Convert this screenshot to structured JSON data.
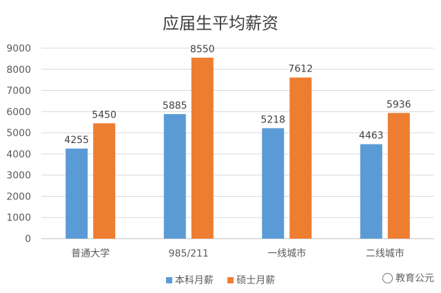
{
  "chart_data": {
    "type": "bar",
    "title": "应届生平均薪资",
    "categories": [
      "普通大学",
      "985/211",
      "一线城市",
      "二线城市"
    ],
    "series": [
      {
        "name": "本科月薪",
        "values": [
          4255,
          5885,
          5218,
          4463
        ],
        "color": "#5B9BD5"
      },
      {
        "name": "硕士月薪",
        "values": [
          5450,
          8550,
          7612,
          5936
        ],
        "color": "#ED7D31"
      }
    ],
    "ylim": [
      0,
      9000
    ],
    "yticks": [
      0,
      1000,
      2000,
      3000,
      4000,
      5000,
      6000,
      7000,
      8000,
      9000
    ],
    "grid": true,
    "legend_position": "bottom",
    "data_labels": true
  },
  "watermark": {
    "text": "教育公元",
    "icon": "watermark-logo-icon"
  }
}
